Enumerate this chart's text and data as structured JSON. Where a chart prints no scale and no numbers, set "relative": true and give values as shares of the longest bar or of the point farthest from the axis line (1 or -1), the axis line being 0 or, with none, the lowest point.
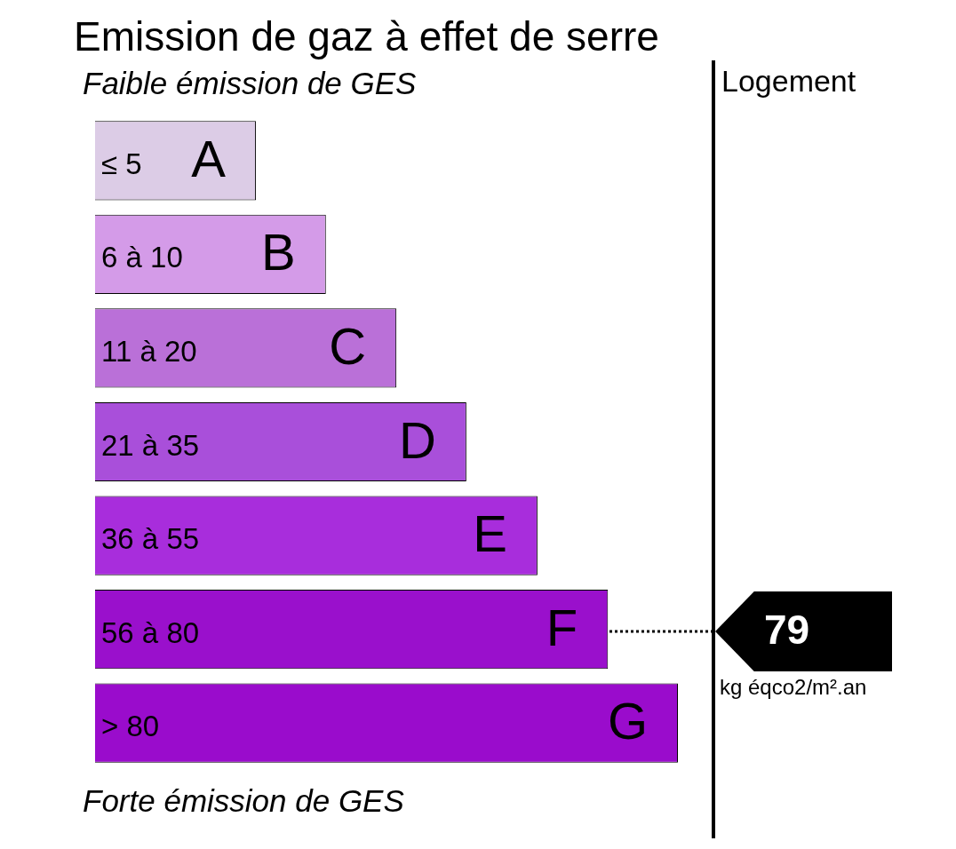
{
  "chart_data": {
    "type": "bar",
    "orientation": "horizontal",
    "relative": true,
    "title": "Emission de gaz à effet de serre",
    "subtitle": "Faible émission de GES",
    "categories": [
      "≤ 5",
      "6 à 10",
      "11 à 20",
      "21 à 35",
      "36 à 55",
      "56 à 80",
      "> 80"
    ],
    "values": [
      0.276,
      0.396,
      0.517,
      0.637,
      0.759,
      0.88,
      1
    ],
    "colors": [
      "#dccce6",
      "#d49be8",
      "#ba70d8",
      "#a94fda",
      "#a82ddc",
      "#9a10cc",
      "#9a0ccc"
    ],
    "annotations": [
      {
        "text": "A",
        "x": 0.276,
        "y": "≤ 5"
      },
      {
        "text": "B",
        "x": 0.396,
        "y": "6 à 10"
      },
      {
        "text": "C",
        "x": 0.517,
        "y": "11 à 20"
      },
      {
        "text": "D",
        "x": 0.637,
        "y": "21 à 35"
      },
      {
        "text": "E",
        "x": 0.759,
        "y": "36 à 55"
      },
      {
        "text": "F",
        "x": 0.88,
        "y": "56 à 80"
      },
      {
        "text": "G",
        "x": 1,
        "y": "> 80"
      },
      "79",
      "Logement",
      "kg éqco2/m².an",
      "Forte émission de GES"
    ],
    "legend": false
  }
}
